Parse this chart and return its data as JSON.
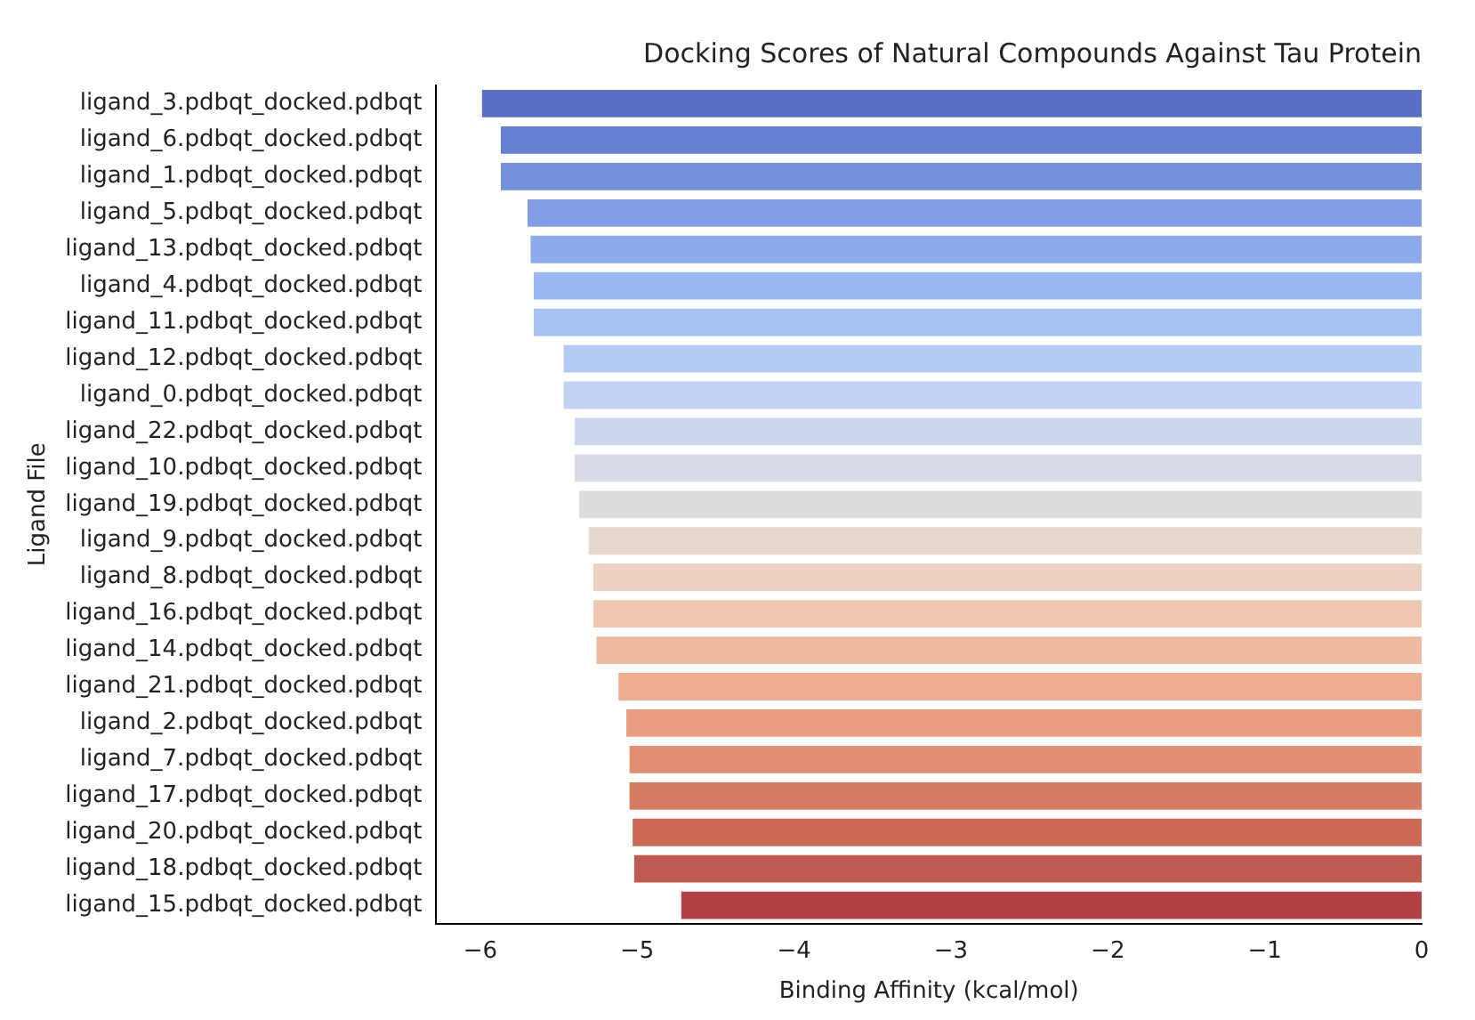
{
  "chart_data": {
    "type": "bar",
    "orientation": "horizontal",
    "title": "Docking Scores of Natural Compounds Against Tau Protein",
    "xlabel": "Binding Affinity (kcal/mol)",
    "ylabel": "Ligand File",
    "categories": [
      "ligand_3.pdbqt_docked.pdbqt",
      "ligand_6.pdbqt_docked.pdbqt",
      "ligand_1.pdbqt_docked.pdbqt",
      "ligand_5.pdbqt_docked.pdbqt",
      "ligand_13.pdbqt_docked.pdbqt",
      "ligand_4.pdbqt_docked.pdbqt",
      "ligand_11.pdbqt_docked.pdbqt",
      "ligand_12.pdbqt_docked.pdbqt",
      "ligand_0.pdbqt_docked.pdbqt",
      "ligand_22.pdbqt_docked.pdbqt",
      "ligand_10.pdbqt_docked.pdbqt",
      "ligand_19.pdbqt_docked.pdbqt",
      "ligand_9.pdbqt_docked.pdbqt",
      "ligand_8.pdbqt_docked.pdbqt",
      "ligand_16.pdbqt_docked.pdbqt",
      "ligand_14.pdbqt_docked.pdbqt",
      "ligand_21.pdbqt_docked.pdbqt",
      "ligand_2.pdbqt_docked.pdbqt",
      "ligand_7.pdbqt_docked.pdbqt",
      "ligand_17.pdbqt_docked.pdbqt",
      "ligand_20.pdbqt_docked.pdbqt",
      "ligand_18.pdbqt_docked.pdbqt",
      "ligand_15.pdbqt_docked.pdbqt"
    ],
    "values": [
      -6.0,
      -5.88,
      -5.88,
      -5.71,
      -5.69,
      -5.67,
      -5.67,
      -5.48,
      -5.48,
      -5.41,
      -5.41,
      -5.38,
      -5.32,
      -5.29,
      -5.29,
      -5.27,
      -5.13,
      -5.08,
      -5.06,
      -5.06,
      -5.04,
      -5.03,
      -4.73
    ],
    "colors": [
      "#5a6ec7",
      "#6680d5",
      "#7390dd",
      "#7f9ee5",
      "#8caaec",
      "#99b8f1",
      "#a6c2f4",
      "#b4cbf5",
      "#c0d3f4",
      "#ccd7ed",
      "#d7dbe5",
      "#dedcdb",
      "#e6d7cf",
      "#ecd0c0",
      "#efc6b0",
      "#f0b9a0",
      "#eeac90",
      "#e99e81",
      "#e18e72",
      "#d87b63",
      "#cc6a57",
      "#bf5a4e",
      "#b24045"
    ],
    "xlim": [
      -6.28,
      0
    ],
    "xticks": [
      {
        "value": -6,
        "label": "−6"
      },
      {
        "value": -5,
        "label": "−5"
      },
      {
        "value": -4,
        "label": "−4"
      },
      {
        "value": -3,
        "label": "−3"
      },
      {
        "value": -2,
        "label": "−2"
      },
      {
        "value": -1,
        "label": "−1"
      },
      0
    ],
    "grid": false,
    "legend": false
  }
}
